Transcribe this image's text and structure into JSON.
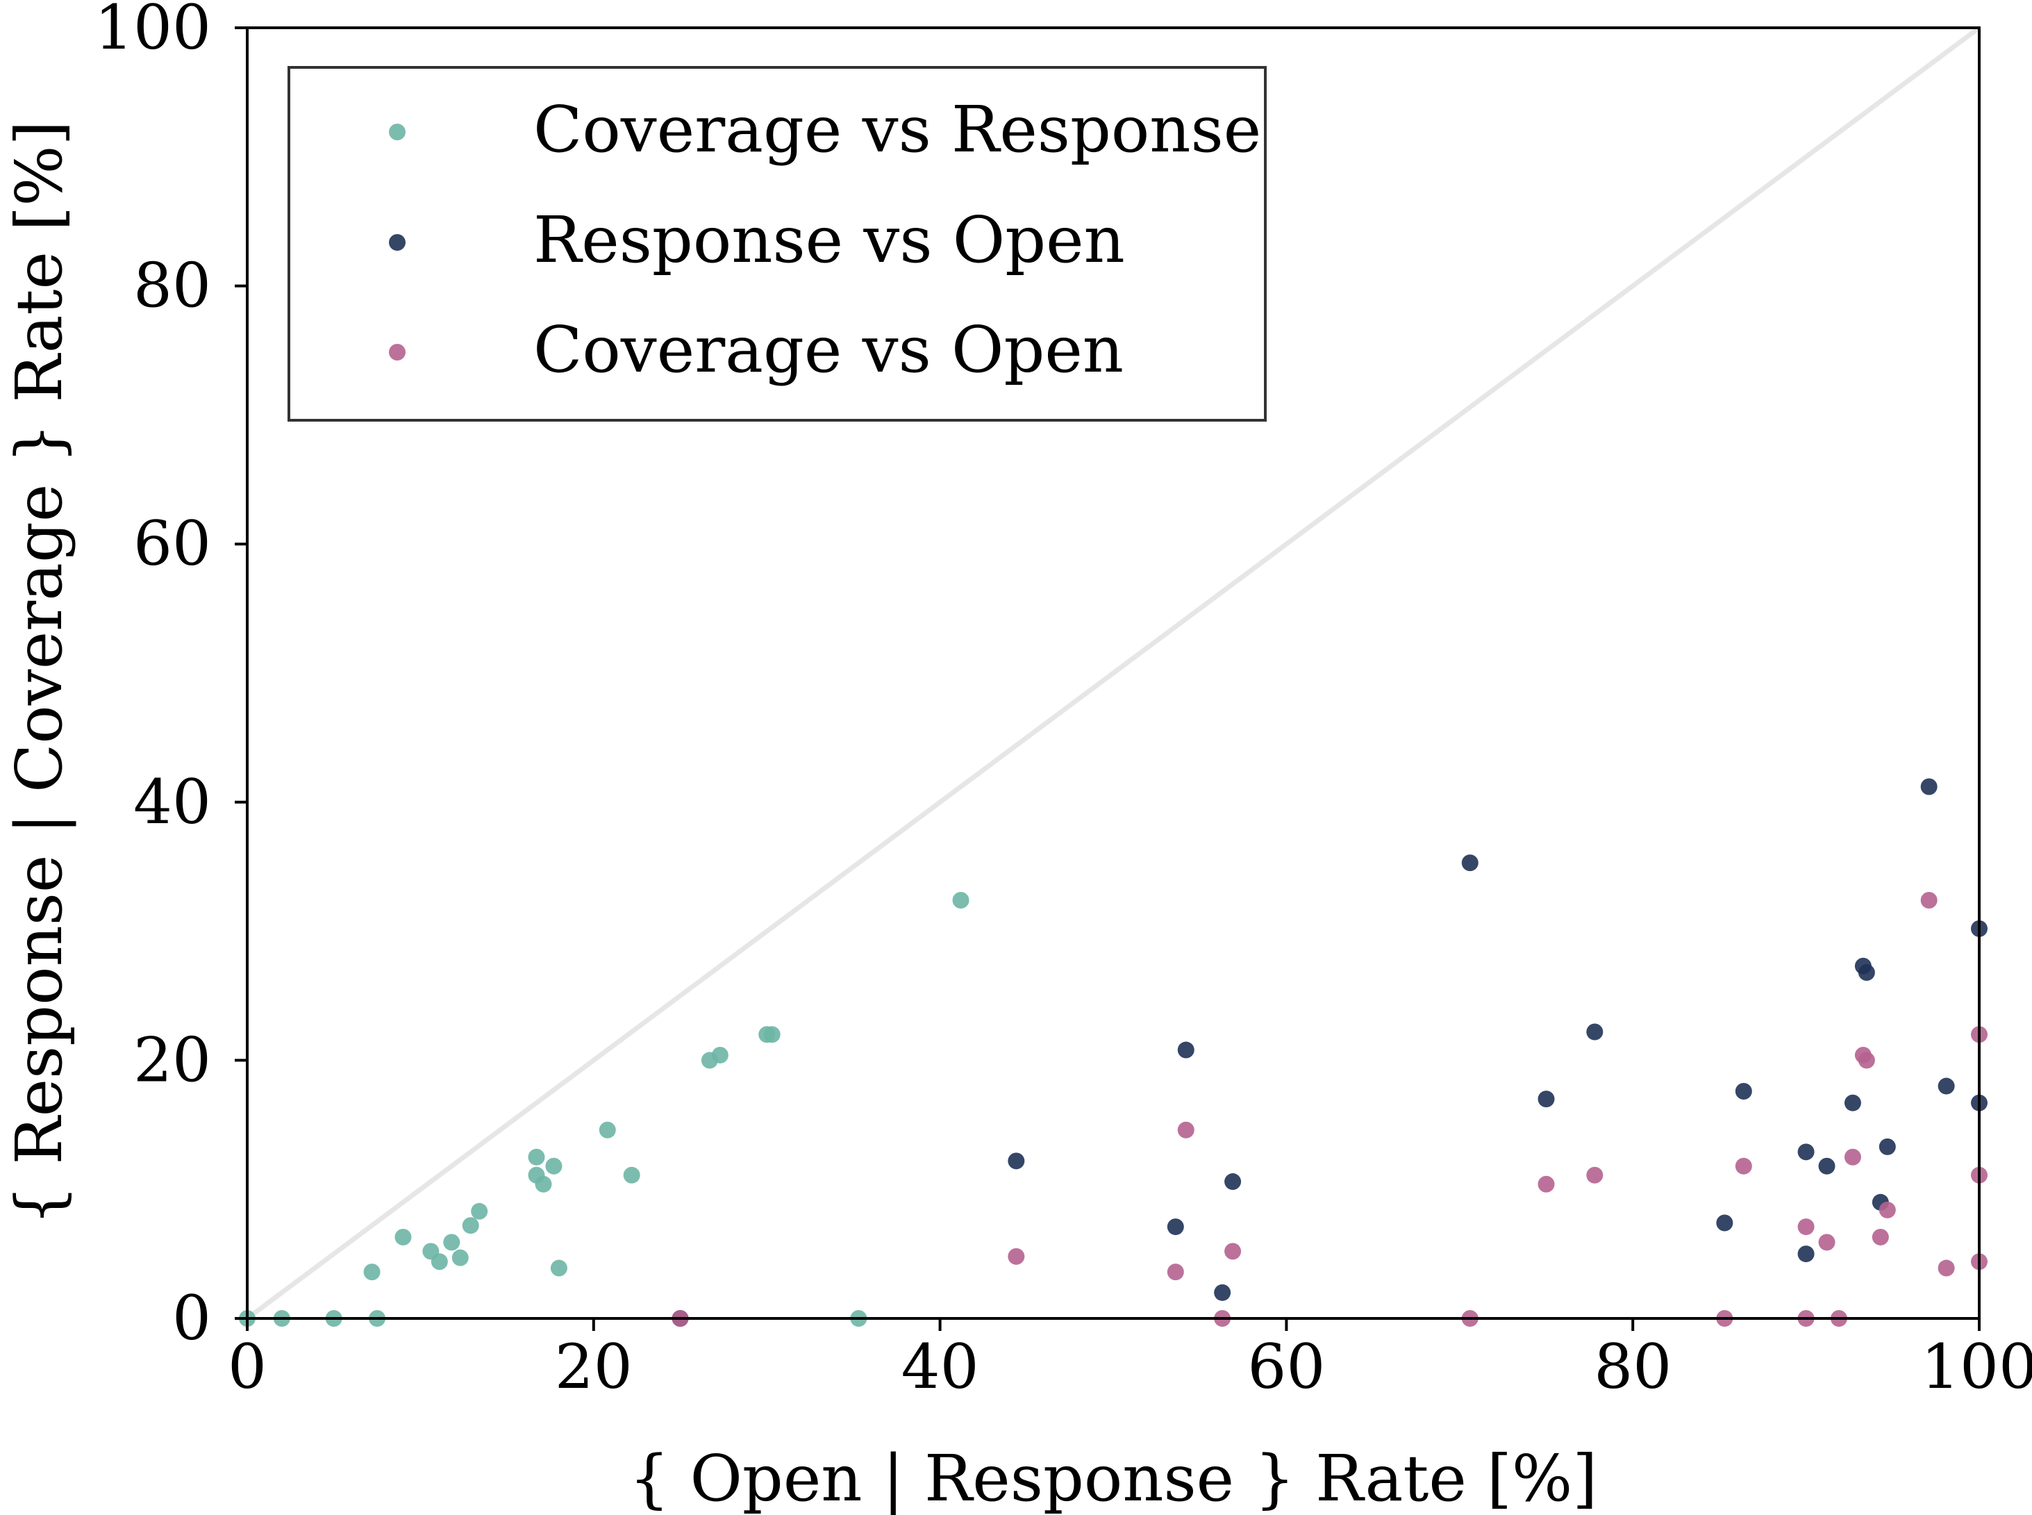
{
  "chart_data": {
    "type": "scatter",
    "xlabel": "{ Open | Response } Rate [%]",
    "ylabel": "{ Response | Coverage } Rate [%]",
    "xlim": [
      0,
      100
    ],
    "ylim": [
      0,
      100
    ],
    "xticks": [
      "0",
      "20",
      "40",
      "60",
      "80",
      "100"
    ],
    "yticks": [
      "0",
      "20",
      "40",
      "60",
      "80",
      "100"
    ],
    "legend_position": "top-left",
    "reference_line": {
      "from": [
        0,
        0
      ],
      "to": [
        100,
        100
      ],
      "color": "#e6e6e6"
    },
    "series": [
      {
        "name": "Coverage vs Response",
        "color": "#6db5a5",
        "points": [
          [
            0.0,
            0.0
          ],
          [
            2.0,
            0.0
          ],
          [
            5.0,
            0.0
          ],
          [
            7.5,
            0.0
          ],
          [
            7.2,
            3.6
          ],
          [
            9.0,
            6.3
          ],
          [
            10.6,
            5.2
          ],
          [
            11.1,
            4.4
          ],
          [
            11.8,
            5.9
          ],
          [
            12.3,
            4.7
          ],
          [
            12.9,
            7.2
          ],
          [
            13.4,
            8.3
          ],
          [
            16.7,
            12.5
          ],
          [
            16.7,
            11.1
          ],
          [
            17.1,
            10.4
          ],
          [
            17.7,
            11.8
          ],
          [
            18.0,
            3.9
          ],
          [
            20.8,
            14.6
          ],
          [
            22.2,
            11.1
          ],
          [
            26.7,
            20.0
          ],
          [
            27.3,
            20.4
          ],
          [
            30.0,
            22.0
          ],
          [
            30.3,
            22.0
          ],
          [
            35.3,
            0.0
          ],
          [
            41.2,
            32.4
          ]
        ]
      },
      {
        "name": "Response vs Open",
        "color": "#1f3257",
        "points": [
          [
            25.0,
            0.0
          ],
          [
            44.4,
            12.2
          ],
          [
            53.6,
            7.1
          ],
          [
            54.2,
            20.8
          ],
          [
            56.3,
            2.0
          ],
          [
            56.9,
            10.6
          ],
          [
            70.6,
            35.3
          ],
          [
            75.0,
            17.0
          ],
          [
            77.8,
            22.2
          ],
          [
            85.3,
            7.4
          ],
          [
            86.4,
            17.6
          ],
          [
            90.0,
            12.9
          ],
          [
            90.0,
            5.0
          ],
          [
            91.2,
            11.8
          ],
          [
            92.7,
            16.7
          ],
          [
            93.3,
            27.3
          ],
          [
            93.5,
            26.8
          ],
          [
            94.3,
            9.0
          ],
          [
            94.7,
            13.3
          ],
          [
            97.1,
            41.2
          ],
          [
            98.1,
            18.0
          ],
          [
            100.0,
            30.2
          ],
          [
            100.0,
            16.7
          ]
        ]
      },
      {
        "name": "Coverage vs Open",
        "color": "#b5628f",
        "points": [
          [
            25.0,
            0.0
          ],
          [
            44.4,
            4.8
          ],
          [
            53.6,
            3.6
          ],
          [
            54.2,
            14.6
          ],
          [
            56.3,
            0.0
          ],
          [
            56.9,
            5.2
          ],
          [
            70.6,
            0.0
          ],
          [
            75.0,
            10.4
          ],
          [
            77.8,
            11.1
          ],
          [
            85.3,
            0.0
          ],
          [
            86.4,
            11.8
          ],
          [
            90.0,
            0.0
          ],
          [
            90.0,
            7.1
          ],
          [
            91.2,
            5.9
          ],
          [
            91.9,
            0.0
          ],
          [
            92.7,
            12.5
          ],
          [
            93.3,
            20.4
          ],
          [
            93.5,
            20.0
          ],
          [
            94.3,
            6.3
          ],
          [
            94.7,
            8.4
          ],
          [
            97.1,
            32.4
          ],
          [
            98.1,
            3.9
          ],
          [
            100.0,
            22.0
          ],
          [
            100.0,
            11.1
          ],
          [
            100.0,
            4.4
          ]
        ]
      }
    ]
  }
}
